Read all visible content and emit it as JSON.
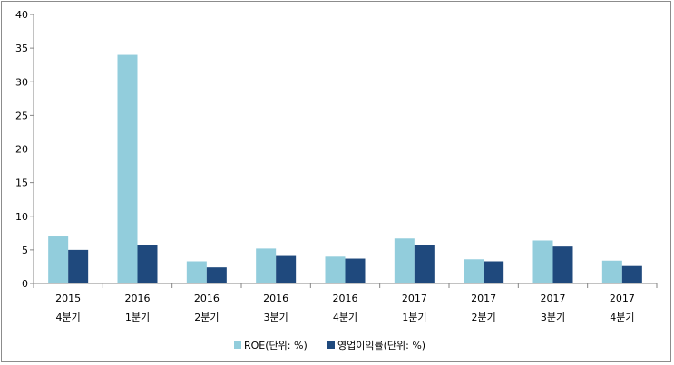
{
  "chart_data": {
    "type": "bar",
    "categories": [
      [
        "2015",
        "4분기"
      ],
      [
        "2016",
        "1분기"
      ],
      [
        "2016",
        "2분기"
      ],
      [
        "2016",
        "3분기"
      ],
      [
        "2016",
        "4분기"
      ],
      [
        "2017",
        "1분기"
      ],
      [
        "2017",
        "2분기"
      ],
      [
        "2017",
        "3분기"
      ],
      [
        "2017",
        "4분기"
      ]
    ],
    "series": [
      {
        "name": "ROE(단위: %)",
        "color": "#92cddc",
        "values": [
          7.0,
          34.0,
          3.3,
          5.2,
          4.0,
          6.7,
          3.6,
          6.4,
          3.4
        ]
      },
      {
        "name": "영업이익률(단위: %)",
        "color": "#1f497d",
        "values": [
          5.0,
          5.7,
          2.4,
          4.1,
          3.7,
          5.7,
          3.3,
          5.5,
          2.6
        ]
      }
    ],
    "yticks": [
      0,
      5,
      10,
      15,
      20,
      25,
      30,
      35,
      40
    ],
    "ylim": [
      0,
      40
    ],
    "legend_position": "bottom",
    "grid": false
  }
}
